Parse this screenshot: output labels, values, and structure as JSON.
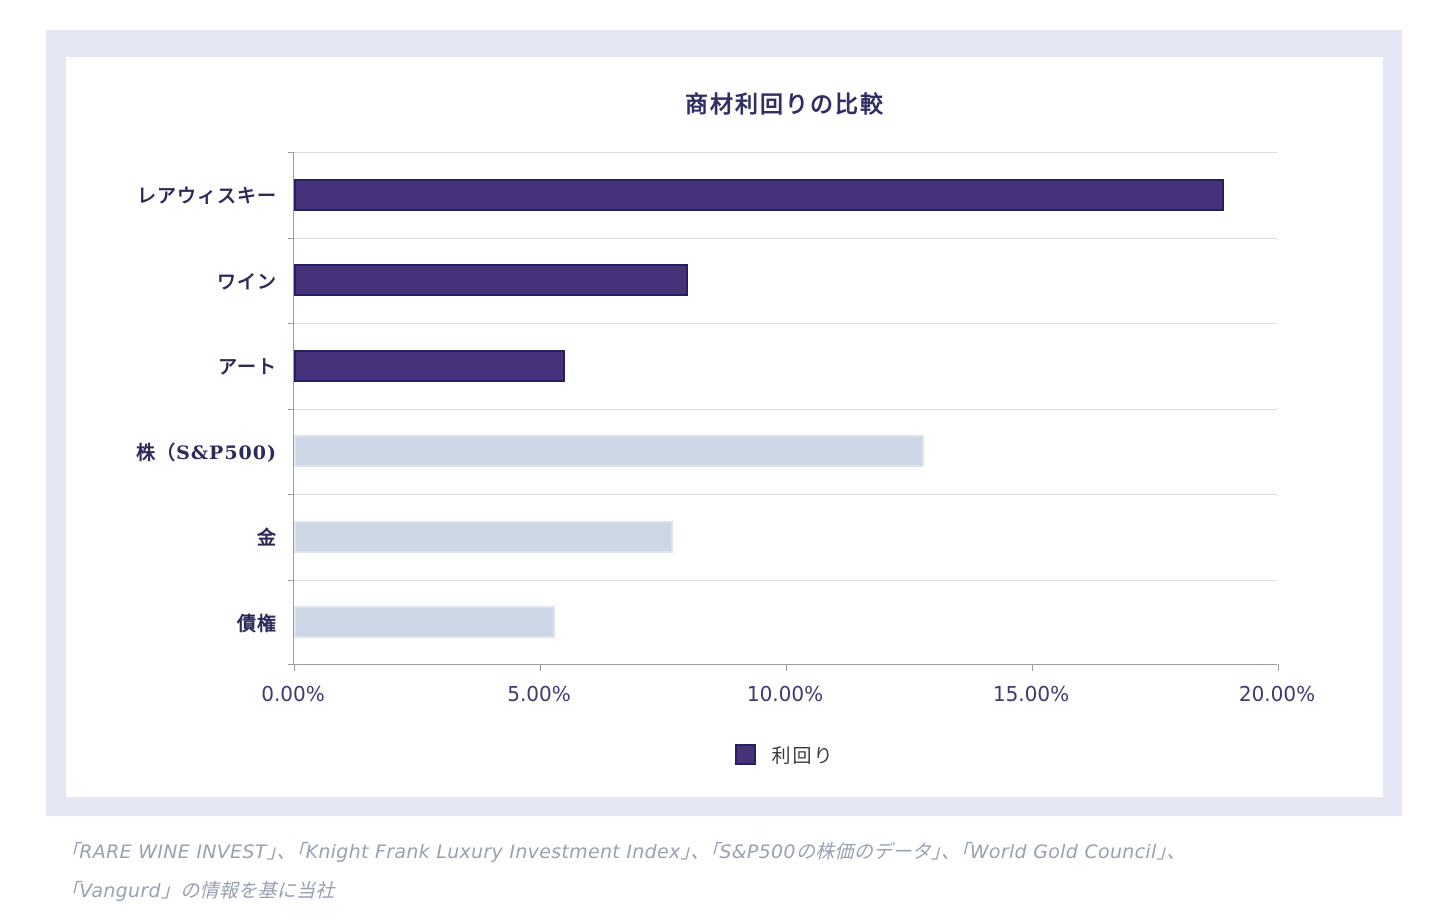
{
  "panel": {
    "background": "#e4e6f3",
    "card_background": "#ffffff"
  },
  "chart_data": {
    "type": "bar",
    "orientation": "horizontal",
    "title": "商材利回りの比較",
    "categories": [
      "レアウィスキー",
      "ワイン",
      "アート",
      "株（S&P500)",
      "金",
      "債権"
    ],
    "values": [
      18.9,
      8.0,
      5.5,
      12.8,
      7.7,
      5.3
    ],
    "unit": "%",
    "xlim": [
      0,
      20
    ],
    "x_tick_values": [
      0,
      5,
      10,
      15,
      20
    ],
    "x_tick_labels": [
      "0.00%",
      "5.00%",
      "10.00%",
      "15.00%",
      "20.00%"
    ],
    "grid": "horizontal-row-separators",
    "legend": {
      "label": "利回り",
      "position": "bottom-center"
    },
    "series_colors": {
      "dark": {
        "fill": "#46317b",
        "border": "#25205f"
      },
      "light": {
        "fill": "#cdd6e4",
        "border": "#dee4ef"
      }
    },
    "bar_color_keys": [
      "dark",
      "dark",
      "dark",
      "light",
      "light",
      "light"
    ]
  },
  "source_note": {
    "line1": "「RARE WINE INVEST」、「Knight Frank Luxury Investment Index」、「S&P500の株価のデータ」、「World Gold Council」、",
    "line2": "「Vangurd」の情報を基に当社"
  }
}
